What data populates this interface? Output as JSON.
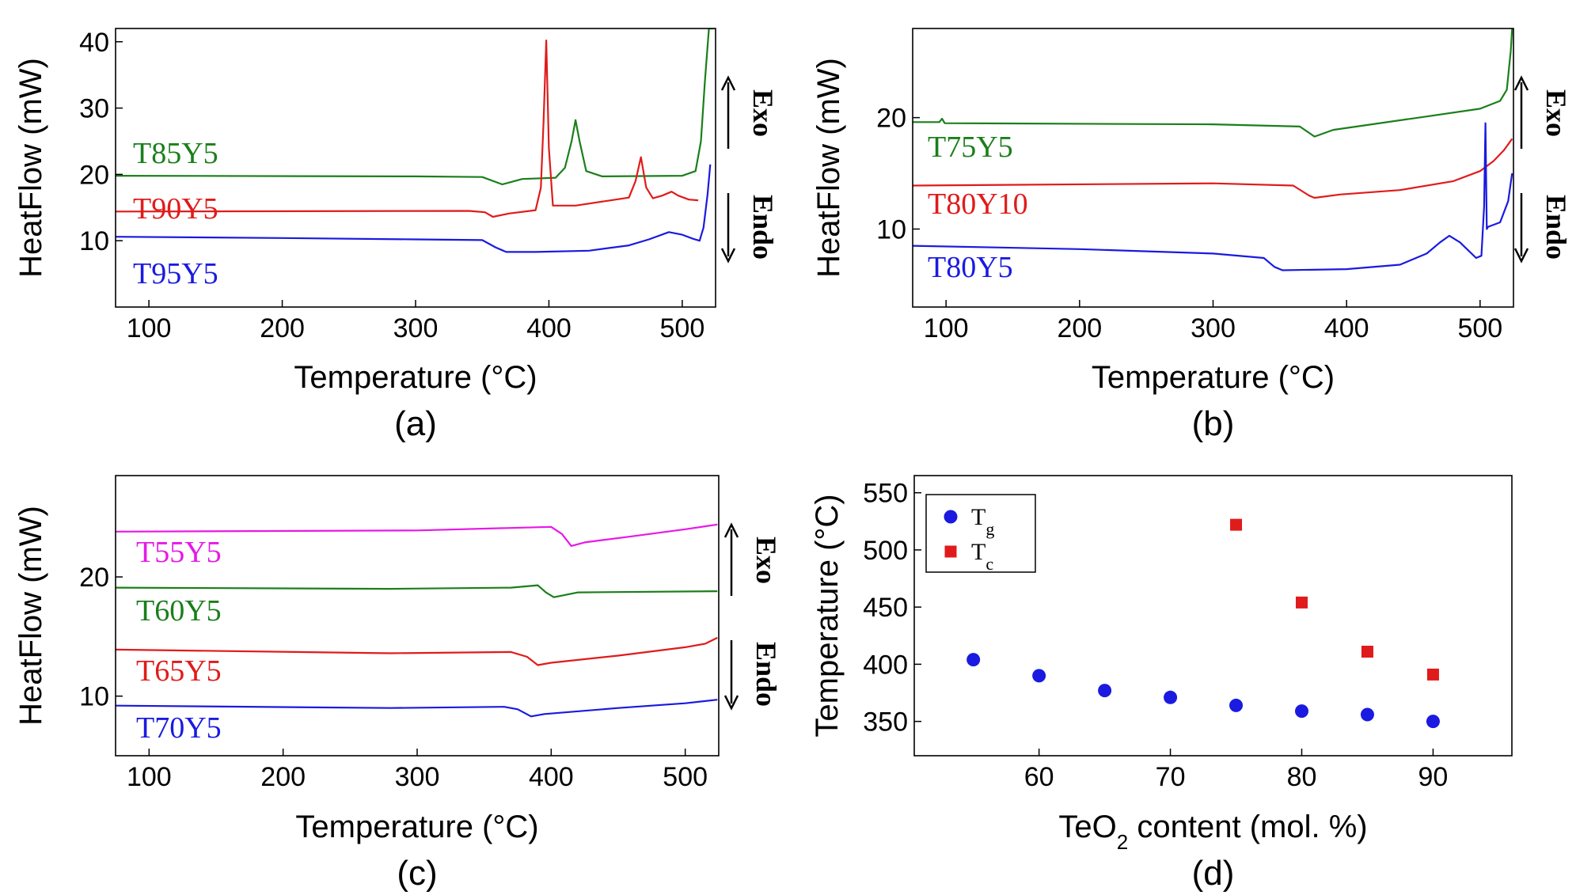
{
  "chart_data": [
    {
      "id": "a",
      "type": "line",
      "panel_label": "(a)",
      "xlabel": "Temperature (°C)",
      "ylabel": "HeatFlow (mW)",
      "xlim": [
        75,
        525
      ],
      "ylim": [
        0,
        42
      ],
      "xticks": [
        100,
        200,
        300,
        400,
        500
      ],
      "yticks": [
        10,
        20,
        30,
        40
      ],
      "direction": {
        "up": "Exo",
        "down": "Endo"
      },
      "series": [
        {
          "name": "T85Y5",
          "color": "#1a7f1a",
          "x": [
            75,
            300,
            350,
            365,
            380,
            405,
            412,
            417,
            420,
            423,
            428,
            440,
            500,
            510,
            514,
            517,
            520,
            524
          ],
          "y": [
            19.8,
            19.7,
            19.6,
            18.5,
            19.3,
            19.5,
            21,
            25,
            28.2,
            25,
            20.5,
            19.7,
            19.8,
            20.5,
            25,
            34,
            42,
            42
          ]
        },
        {
          "name": "T90Y5",
          "color": "#e01b1b",
          "x": [
            75,
            340,
            352,
            358,
            370,
            390,
            394,
            396,
            398,
            400,
            403,
            420,
            460,
            465,
            469,
            473,
            478,
            485,
            492,
            497,
            505,
            512
          ],
          "y": [
            14.4,
            14.5,
            14.3,
            13.6,
            14.1,
            14.6,
            18,
            28,
            40.2,
            24,
            15.3,
            15.3,
            16.5,
            19,
            22.6,
            18,
            16.4,
            16.8,
            17.4,
            16.8,
            16.2,
            16.1
          ]
        },
        {
          "name": "T95Y5",
          "color": "#1a1ae0",
          "x": [
            75,
            200,
            300,
            350,
            360,
            368,
            390,
            430,
            460,
            475,
            490,
            500,
            508,
            513,
            516,
            519,
            521
          ],
          "y": [
            10.6,
            10.4,
            10.2,
            10.1,
            9,
            8.3,
            8.3,
            8.5,
            9.3,
            10.2,
            11.3,
            10.9,
            10.3,
            10,
            12,
            17,
            21.5
          ]
        }
      ]
    },
    {
      "id": "b",
      "type": "line",
      "panel_label": "(b)",
      "xlabel": "Temperature (°C)",
      "ylabel": "HeatFlow (mW)",
      "xlim": [
        75,
        525
      ],
      "ylim": [
        3,
        28
      ],
      "xticks": [
        100,
        200,
        300,
        400,
        500
      ],
      "yticks": [
        10,
        20
      ],
      "direction": {
        "up": "Exo",
        "down": "Endo"
      },
      "series": [
        {
          "name": "T75Y5",
          "color": "#1a7f1a",
          "x": [
            75,
            95,
            97,
            99,
            300,
            365,
            376,
            390,
            460,
            500,
            515,
            520,
            523,
            524
          ],
          "y": [
            19.6,
            19.6,
            19.9,
            19.5,
            19.4,
            19.2,
            18.3,
            18.9,
            20.1,
            20.8,
            21.5,
            22.5,
            26,
            28
          ]
        },
        {
          "name": "T80Y10",
          "color": "#e01b1b",
          "x": [
            75,
            300,
            360,
            372,
            376,
            395,
            440,
            480,
            500,
            510,
            518,
            524
          ],
          "y": [
            13.9,
            14.1,
            13.9,
            13,
            12.8,
            13.1,
            13.5,
            14.3,
            15.2,
            16.1,
            17.1,
            18.1
          ]
        },
        {
          "name": "T80Y5",
          "color": "#1a1ae0",
          "x": [
            75,
            200,
            300,
            338,
            346,
            352,
            400,
            440,
            460,
            470,
            477,
            485,
            497,
            501,
            503,
            504,
            505,
            506,
            515,
            521,
            524
          ],
          "y": [
            8.5,
            8.2,
            7.8,
            7.4,
            6.6,
            6.3,
            6.4,
            6.8,
            7.8,
            8.8,
            9.4,
            8.8,
            7.4,
            7.6,
            12,
            19.5,
            10,
            10.2,
            10.6,
            12.5,
            15
          ]
        }
      ]
    },
    {
      "id": "c",
      "type": "line",
      "panel_label": "(c)",
      "xlabel": "Temperature (°C)",
      "ylabel": "HeatFlow (mW)",
      "xlim": [
        75,
        525
      ],
      "ylim": [
        5,
        28.5
      ],
      "xticks": [
        100,
        200,
        300,
        400,
        500
      ],
      "yticks": [
        10,
        20
      ],
      "direction": {
        "up": "Exo",
        "down": "Endo"
      },
      "series": [
        {
          "name": "T55Y5",
          "color": "#e619e6",
          "x": [
            75,
            300,
            400,
            408,
            415,
            425,
            460,
            500,
            524
          ],
          "y": [
            23.8,
            23.9,
            24.2,
            23.6,
            22.6,
            22.9,
            23.4,
            24,
            24.4
          ]
        },
        {
          "name": "T60Y5",
          "color": "#1a7f1a",
          "x": [
            75,
            280,
            370,
            390,
            396,
            402,
            420,
            524
          ],
          "y": [
            19.1,
            19,
            19.1,
            19.3,
            18.7,
            18.3,
            18.7,
            18.8
          ]
        },
        {
          "name": "T65Y5",
          "color": "#e01b1b",
          "x": [
            75,
            280,
            370,
            382,
            390,
            400,
            450,
            500,
            515,
            524
          ],
          "y": [
            13.9,
            13.6,
            13.7,
            13.3,
            12.6,
            12.8,
            13.4,
            14.1,
            14.4,
            14.9
          ]
        },
        {
          "name": "T70Y5",
          "color": "#1a1ae0",
          "x": [
            75,
            280,
            365,
            375,
            385,
            395,
            450,
            500,
            524
          ],
          "y": [
            9.2,
            9,
            9.1,
            8.9,
            8.3,
            8.5,
            9,
            9.4,
            9.7
          ]
        }
      ]
    },
    {
      "id": "d",
      "type": "scatter",
      "panel_label": "(d)",
      "xlabel": "TeO2 content (mol. %)",
      "ylabel": "Temperature (°C)",
      "xlim": [
        50.5,
        96
      ],
      "ylim": [
        320,
        565
      ],
      "xticks": [
        60,
        70,
        80,
        90
      ],
      "yticks": [
        350,
        400,
        450,
        500,
        550
      ],
      "series": [
        {
          "name": "Tg",
          "marker": "circle",
          "color": "#1a1ae0",
          "x": [
            55,
            60,
            65,
            70,
            75,
            80,
            85,
            90
          ],
          "y": [
            404,
            390,
            377,
            371,
            364,
            359,
            356,
            350
          ]
        },
        {
          "name": "Tc",
          "marker": "square",
          "color": "#e01b1b",
          "x": [
            75,
            80,
            85,
            90
          ],
          "y": [
            522,
            454,
            411,
            391
          ]
        }
      ]
    }
  ]
}
